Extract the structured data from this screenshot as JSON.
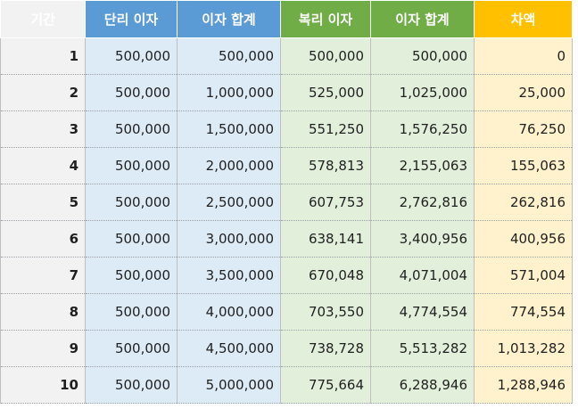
{
  "headers": {
    "period": "기간",
    "simple_interest": "단리 이자",
    "simple_total": "이자 합계",
    "compound_interest": "복리 이자",
    "compound_total": "이자 합계",
    "difference": "차액"
  },
  "colors": {
    "simple_header": "#5b9bd5",
    "compound_header": "#70ad47",
    "difference_header": "#ffc000",
    "highlight_text": "#ff0000"
  },
  "rows": [
    {
      "period": "1",
      "simple_interest": "500,000",
      "simple_total": "500,000",
      "compound_interest": "500,000",
      "compound_total": "500,000",
      "difference": "0"
    },
    {
      "period": "2",
      "simple_interest": "500,000",
      "simple_total": "1,000,000",
      "compound_interest": "525,000",
      "compound_total": "1,025,000",
      "difference": "25,000"
    },
    {
      "period": "3",
      "simple_interest": "500,000",
      "simple_total": "1,500,000",
      "compound_interest": "551,250",
      "compound_total": "1,576,250",
      "difference": "76,250"
    },
    {
      "period": "4",
      "simple_interest": "500,000",
      "simple_total": "2,000,000",
      "compound_interest": "578,813",
      "compound_total": "2,155,063",
      "difference": "155,063"
    },
    {
      "period": "5",
      "simple_interest": "500,000",
      "simple_total": "2,500,000",
      "compound_interest": "607,753",
      "compound_total": "2,762,816",
      "difference": "262,816"
    },
    {
      "period": "6",
      "simple_interest": "500,000",
      "simple_total": "3,000,000",
      "compound_interest": "638,141",
      "compound_total": "3,400,956",
      "difference": "400,956"
    },
    {
      "period": "7",
      "simple_interest": "500,000",
      "simple_total": "3,500,000",
      "compound_interest": "670,048",
      "compound_total": "4,071,004",
      "difference": "571,004"
    },
    {
      "period": "8",
      "simple_interest": "500,000",
      "simple_total": "4,000,000",
      "compound_interest": "703,550",
      "compound_total": "4,774,554",
      "difference": "774,554"
    },
    {
      "period": "9",
      "simple_interest": "500,000",
      "simple_total": "4,500,000",
      "compound_interest": "738,728",
      "compound_total": "5,513,282",
      "difference": "1,013,282"
    },
    {
      "period": "10",
      "simple_interest": "500,000",
      "simple_total": "5,000,000",
      "compound_interest": "775,664",
      "compound_total": "6,288,946",
      "difference": "1,288,946"
    }
  ]
}
